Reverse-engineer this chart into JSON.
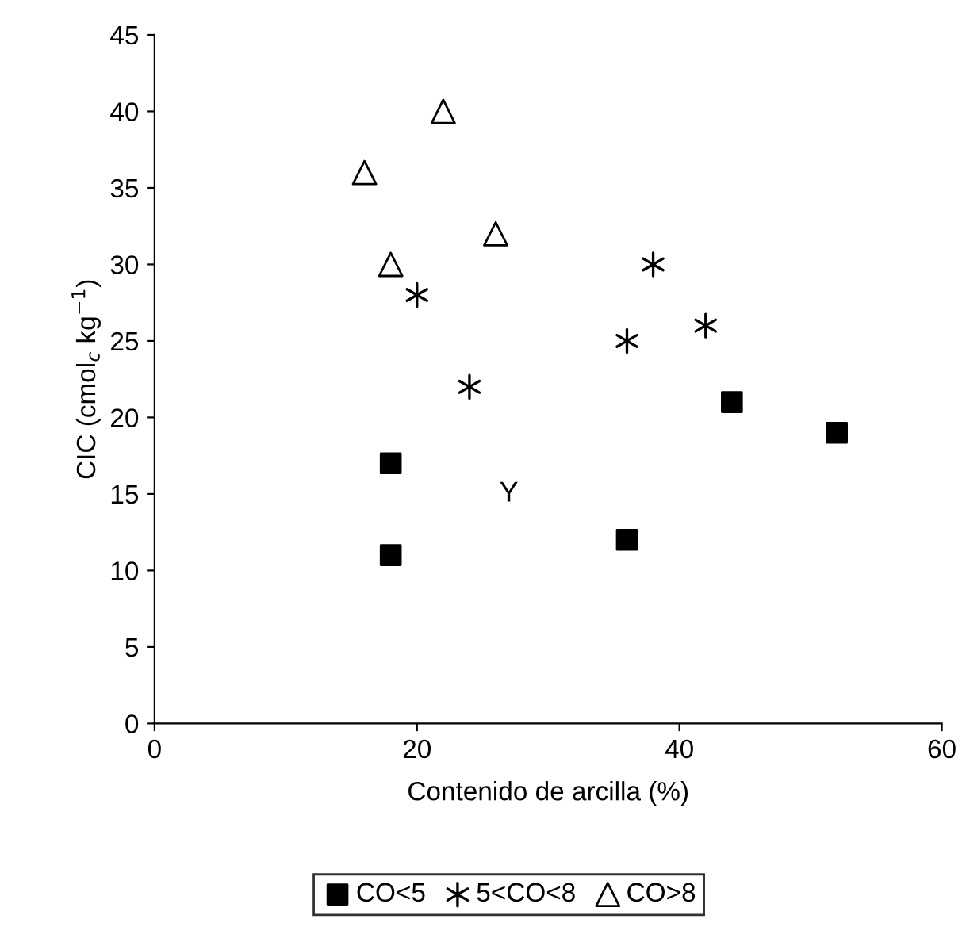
{
  "chart_data": {
    "type": "scatter",
    "xlabel": "Contenido de arcilla (%)",
    "ylabel": "CIC (cmol$_{c}$ kg$^{−1}$)",
    "xlim": [
      0,
      60
    ],
    "xticks": [
      0,
      20,
      40,
      60
    ],
    "ylim": [
      0,
      45
    ],
    "yticks": [
      0,
      5,
      10,
      15,
      20,
      25,
      30,
      35,
      40,
      45
    ],
    "grid": false,
    "legend": "bottom",
    "annotations": [
      "Y"
    ],
    "series": [
      {
        "name": "CO<5",
        "color": "#000000",
        "marker": "square",
        "x": [
          18,
          18,
          36,
          44,
          52
        ],
        "values": [
          17,
          11,
          12,
          21,
          19
        ]
      },
      {
        "name": "5<CO<8",
        "color": "#000000",
        "marker": "cross",
        "x": [
          20,
          24,
          36,
          38,
          42
        ],
        "values": [
          28,
          22,
          25,
          30,
          26
        ]
      },
      {
        "name": "CO>8",
        "color": "#000000",
        "marker": "triangle",
        "x": [
          16,
          18,
          22,
          26
        ],
        "values": [
          36,
          30,
          40,
          32
        ]
      }
    ]
  }
}
